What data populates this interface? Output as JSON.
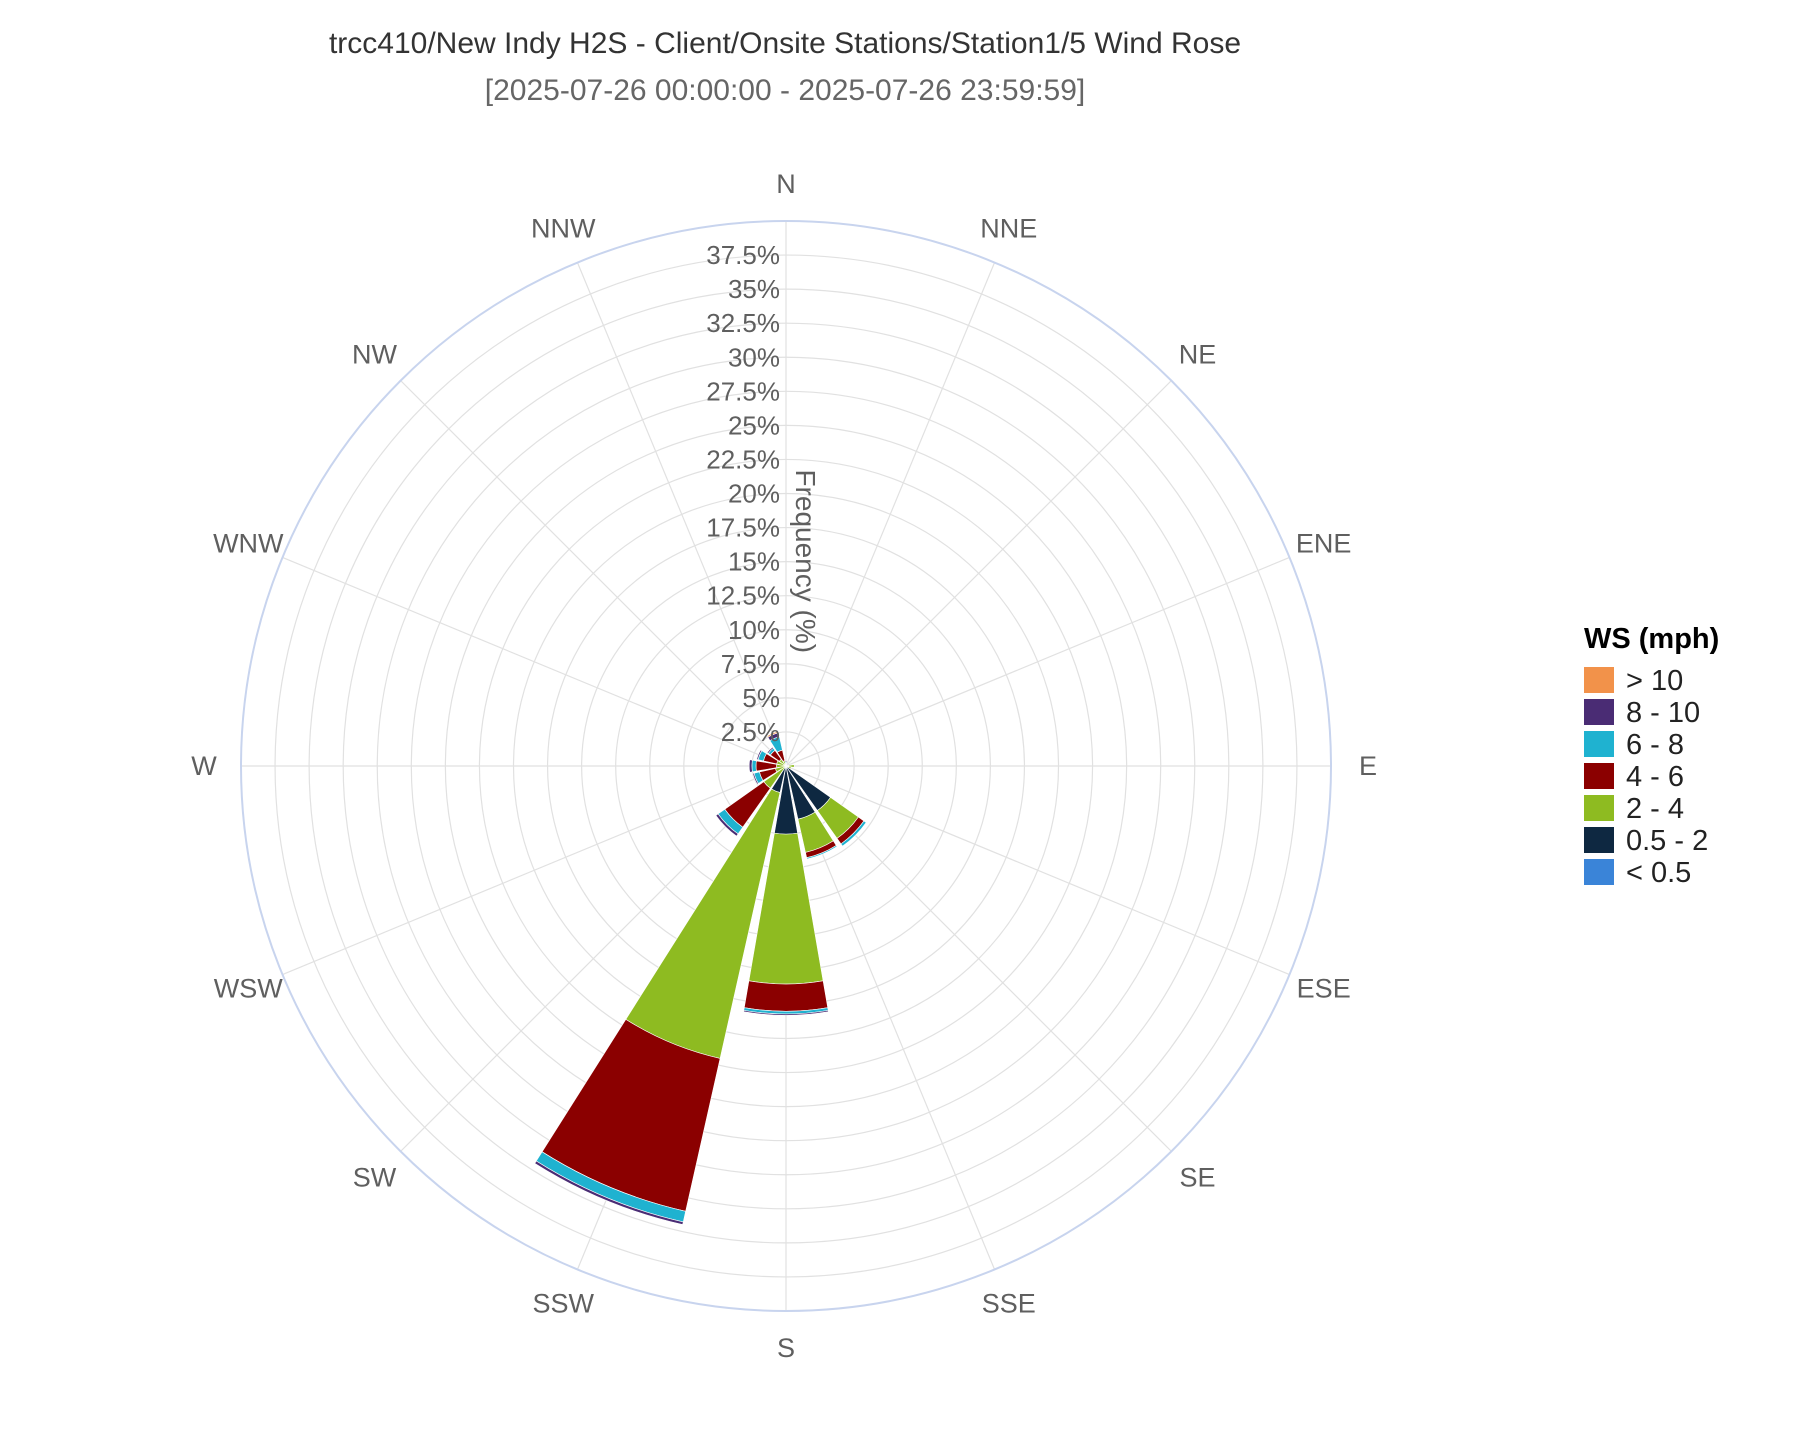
{
  "chart_data": {
    "type": "windrose",
    "title": "trcc410/New Indy H2S - Client/Onsite Stations/Station1/5 Wind Rose",
    "subtitle": "[2025-07-26 00:00:00 - 2025-07-26 23:59:59]",
    "radial_axis_label": "Frequency (%)",
    "radial_ticks": [
      "2.5%",
      "5%",
      "7.5%",
      "10%",
      "12.5%",
      "15%",
      "17.5%",
      "20%",
      "22.5%",
      "25%",
      "27.5%",
      "30%",
      "32.5%",
      "35%",
      "37.5%"
    ],
    "rmax": 40,
    "directions": [
      "N",
      "NNE",
      "NE",
      "ENE",
      "E",
      "ESE",
      "SE",
      "SSE",
      "S",
      "SSW",
      "SW",
      "WSW",
      "W",
      "WNW",
      "NW",
      "NNW"
    ],
    "legend_title": "WS (mph)",
    "legend_placement": "right",
    "series": [
      {
        "name": "< 0.5",
        "color": "#3a84d8",
        "values": [
          0,
          0,
          0,
          0,
          0,
          0,
          0,
          0,
          0,
          0,
          0,
          0,
          0,
          0,
          0,
          0
        ]
      },
      {
        "name": "0.5 - 2",
        "color": "#0e2841",
        "values": [
          0,
          0,
          0,
          0,
          0.2,
          0,
          4.0,
          4.0,
          5.0,
          2.0,
          0,
          0,
          0,
          0,
          0.1,
          0
        ]
      },
      {
        "name": "2 - 4",
        "color": "#8ebb21",
        "values": [
          0.1,
          0.1,
          0.1,
          0.1,
          0.4,
          0.4,
          2.5,
          2.5,
          11.0,
          20.0,
          2.0,
          0.8,
          0.7,
          0.7,
          0.5,
          0.4
        ]
      },
      {
        "name": "4 - 6",
        "color": "#8b0000",
        "values": [
          0.1,
          0,
          0,
          0,
          0,
          0,
          0.5,
          0.4,
          2.0,
          11.5,
          3.5,
          1.2,
          1.5,
          1.0,
          0.8,
          0.8
        ]
      },
      {
        "name": "6 - 8",
        "color": "#1fb2d0",
        "values": [
          0.1,
          0,
          0,
          0,
          0,
          0,
          0.2,
          0.1,
          0.2,
          0.8,
          0.6,
          0.4,
          0.3,
          0.4,
          0.2,
          1.0
        ]
      },
      {
        "name": "8 - 10",
        "color": "#4a2c74",
        "values": [
          0.1,
          0,
          0,
          0,
          0,
          0,
          0,
          0,
          0.1,
          0.2,
          0.2,
          0.1,
          0.2,
          0.1,
          0.1,
          0.3
        ]
      },
      {
        "name": "> 10",
        "color": "#f2924a",
        "values": [
          0,
          0,
          0,
          0,
          0,
          0,
          0,
          0,
          0,
          0,
          0,
          0,
          0,
          0,
          0,
          0.1
        ]
      }
    ],
    "legend_order": [
      "> 10",
      "8 - 10",
      "6 - 8",
      "4 - 6",
      "2 - 4",
      "0.5 - 2",
      "< 0.5"
    ],
    "colors": {
      "grid": "#e1e1e1",
      "outer_ring": "#c8d4ee",
      "background": "#ffffff"
    }
  }
}
